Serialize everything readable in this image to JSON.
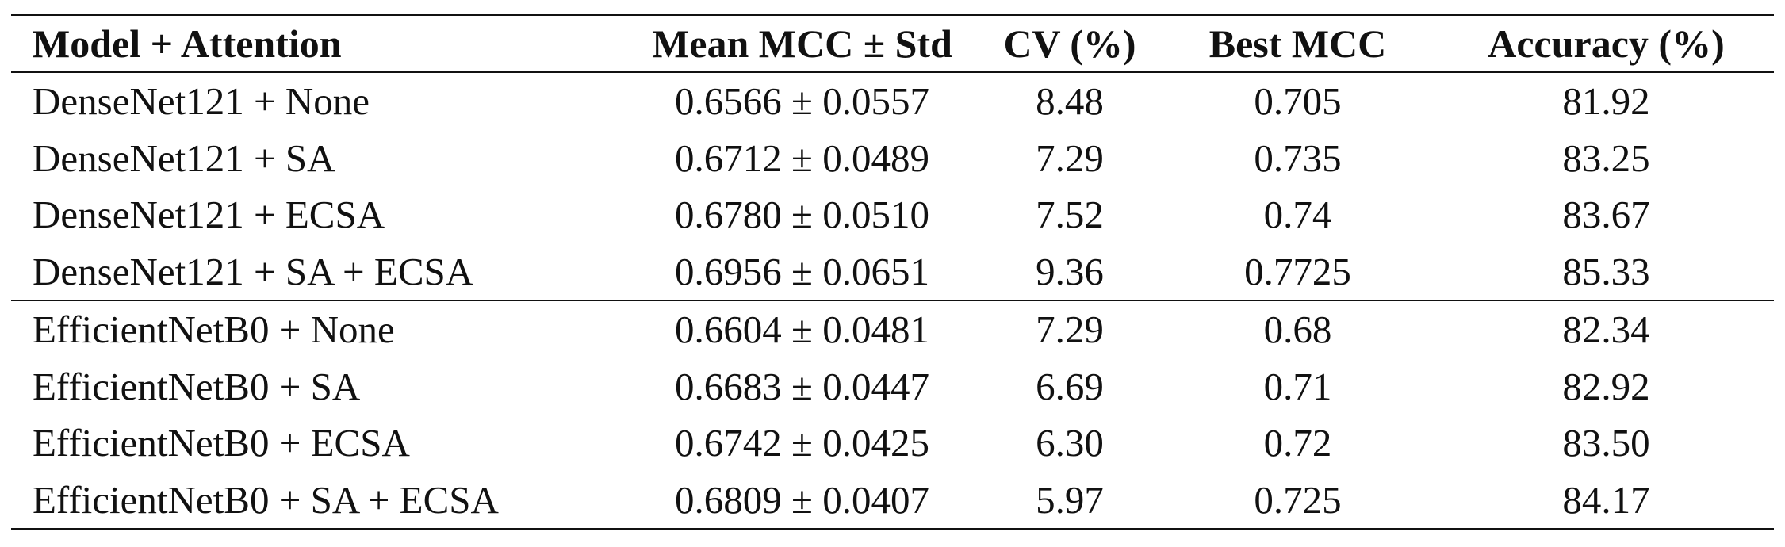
{
  "table": {
    "headers": [
      "Model + Attention",
      "Mean MCC ± Std",
      "CV (%)",
      "Best MCC",
      "Accuracy (%)"
    ],
    "groups": [
      {
        "rows": [
          [
            "DenseNet121 + None",
            "0.6566 ± 0.0557",
            "8.48",
            "0.705",
            "81.92"
          ],
          [
            "DenseNet121 + SA",
            "0.6712 ± 0.0489",
            "7.29",
            "0.735",
            "83.25"
          ],
          [
            "DenseNet121 + ECSA",
            "0.6780 ± 0.0510",
            "7.52",
            "0.74",
            "83.67"
          ],
          [
            "DenseNet121 + SA + ECSA",
            "0.6956 ± 0.0651",
            "9.36",
            "0.7725",
            "85.33"
          ]
        ]
      },
      {
        "rows": [
          [
            "EfficientNetB0 + None",
            "0.6604 ± 0.0481",
            "7.29",
            "0.68",
            "82.34"
          ],
          [
            "EfficientNetB0 + SA",
            "0.6683 ± 0.0447",
            "6.69",
            "0.71",
            "82.92"
          ],
          [
            "EfficientNetB0 + ECSA",
            "0.6742 ± 0.0425",
            "6.30",
            "0.72",
            "83.50"
          ],
          [
            "EfficientNetB0 + SA + ECSA",
            "0.6809 ± 0.0407",
            "5.97",
            "0.725",
            "84.17"
          ]
        ]
      }
    ]
  }
}
